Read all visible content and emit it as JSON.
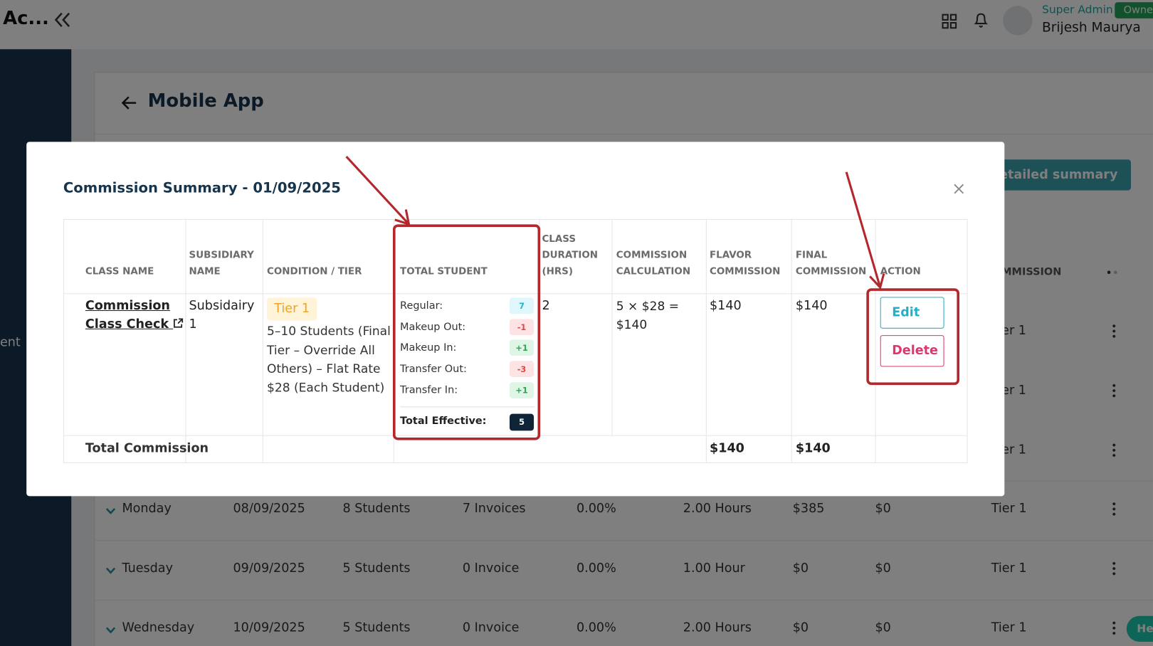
{
  "header": {
    "brand": "Ac...",
    "role": "Super Admin",
    "badge": "Owne",
    "user": "Brijesh Maurya"
  },
  "sidebar": {
    "partial_label": "ent"
  },
  "page": {
    "title": "Mobile App",
    "button": "detailed summary",
    "column_partial": "MMISSION",
    "tier_partials": [
      "er 1",
      "er 1",
      "er 1"
    ],
    "rows": [
      [
        "Monday",
        "08/09/2025",
        "8 Students",
        "7 Invoices",
        "0.00%",
        "2.00 Hours",
        "$385",
        "$0",
        "Tier 1"
      ],
      [
        "Tuesday",
        "09/09/2025",
        "5 Students",
        "0 Invoice",
        "0.00%",
        "1.00 Hour",
        "$0",
        "$0",
        "Tier 1"
      ],
      [
        "Wednesday",
        "10/09/2025",
        "5 Students",
        "0 Invoice",
        "0.00%",
        "2.00 Hours",
        "$0",
        "$0",
        "Tier 1"
      ]
    ]
  },
  "help": "Hel",
  "modal": {
    "title": "Commission Summary - 01/09/2025",
    "table": {
      "columns": [
        "CLASS NAME",
        "SUBSIDIARY NAME",
        "CONDITION / TIER",
        "TOTAL STUDENT",
        "CLASS DURATION (HRS)",
        "COMMISSION CALCULATION",
        "FLAVOR COMMISSION",
        "FINAL COMMISSION",
        "ACTION"
      ],
      "row": {
        "class_name": "Commission Class Check",
        "subsidiary": "Subsidairy 1",
        "tier": "Tier 1",
        "condition": "5–10 Students (Final Tier – Override All Others) – Flat Rate $28 (Each Student)",
        "students": [
          {
            "label": "Regular:",
            "value": "7"
          },
          {
            "label": "Makeup Out:",
            "value": "-1"
          },
          {
            "label": "Makeup In:",
            "value": "+1"
          },
          {
            "label": "Transfer Out:",
            "value": "-3"
          },
          {
            "label": "Transfer In:",
            "value": "+1"
          }
        ],
        "total_effective": {
          "label": "Total Effective:",
          "value": "5"
        },
        "duration": "2",
        "calculation": "5 × $28 = $140",
        "flavor_commission": "$140",
        "final_commission": "$140",
        "actions": [
          "Edit",
          "Delete"
        ]
      },
      "total": {
        "label": "Total Commission",
        "flavor_commission": "$140",
        "final_commission": "$140"
      }
    }
  }
}
